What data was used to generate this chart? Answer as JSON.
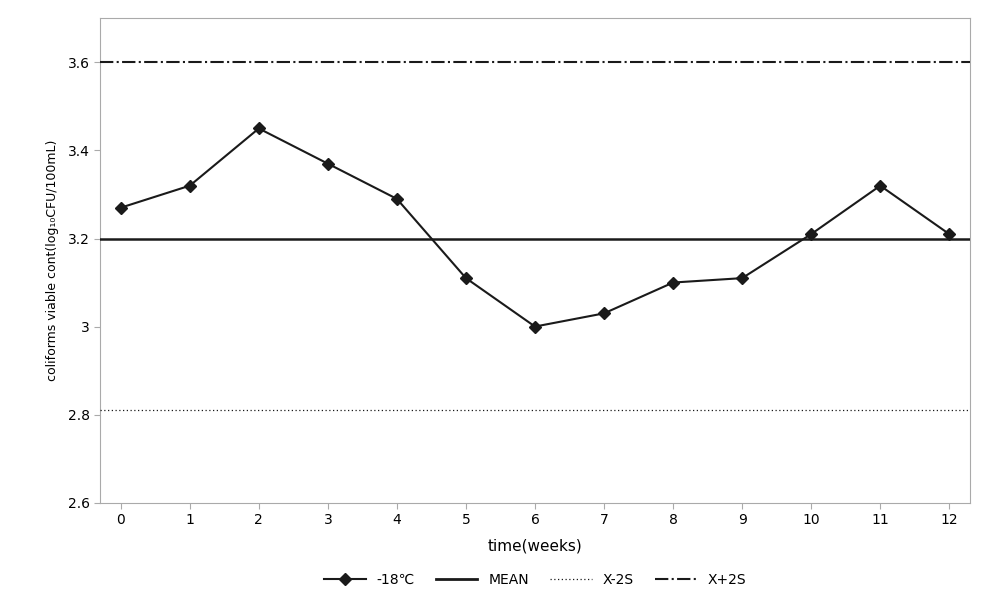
{
  "x": [
    0,
    1,
    2,
    3,
    4,
    5,
    6,
    7,
    8,
    9,
    10,
    11,
    12
  ],
  "y_data": [
    3.27,
    3.32,
    3.45,
    3.37,
    3.29,
    3.11,
    3.0,
    3.03,
    3.1,
    3.11,
    3.21,
    3.32,
    3.21
  ],
  "mean": 3.2,
  "x_minus_2s": 2.81,
  "x_plus_2s": 3.6,
  "xlim": [
    -0.3,
    12.3
  ],
  "ylim": [
    2.6,
    3.7
  ],
  "yticks": [
    2.6,
    2.8,
    3.0,
    3.2,
    3.4,
    3.6
  ],
  "xticks": [
    0,
    1,
    2,
    3,
    4,
    5,
    6,
    7,
    8,
    9,
    10,
    11,
    12
  ],
  "xlabel": "time(weeks)",
  "ylabel": "coliforms viable cont(log₁₀CFU/100mL)",
  "line_color": "#1a1a1a",
  "ref_line_color": "#1a1a1a",
  "bg_color": "#ffffff",
  "spine_color": "#aaaaaa",
  "legend_labels": [
    "-18℃",
    "MEAN",
    "X-2S",
    "X+2S"
  ],
  "axis_fontsize": 11,
  "tick_fontsize": 10,
  "ylabel_fontsize": 9
}
